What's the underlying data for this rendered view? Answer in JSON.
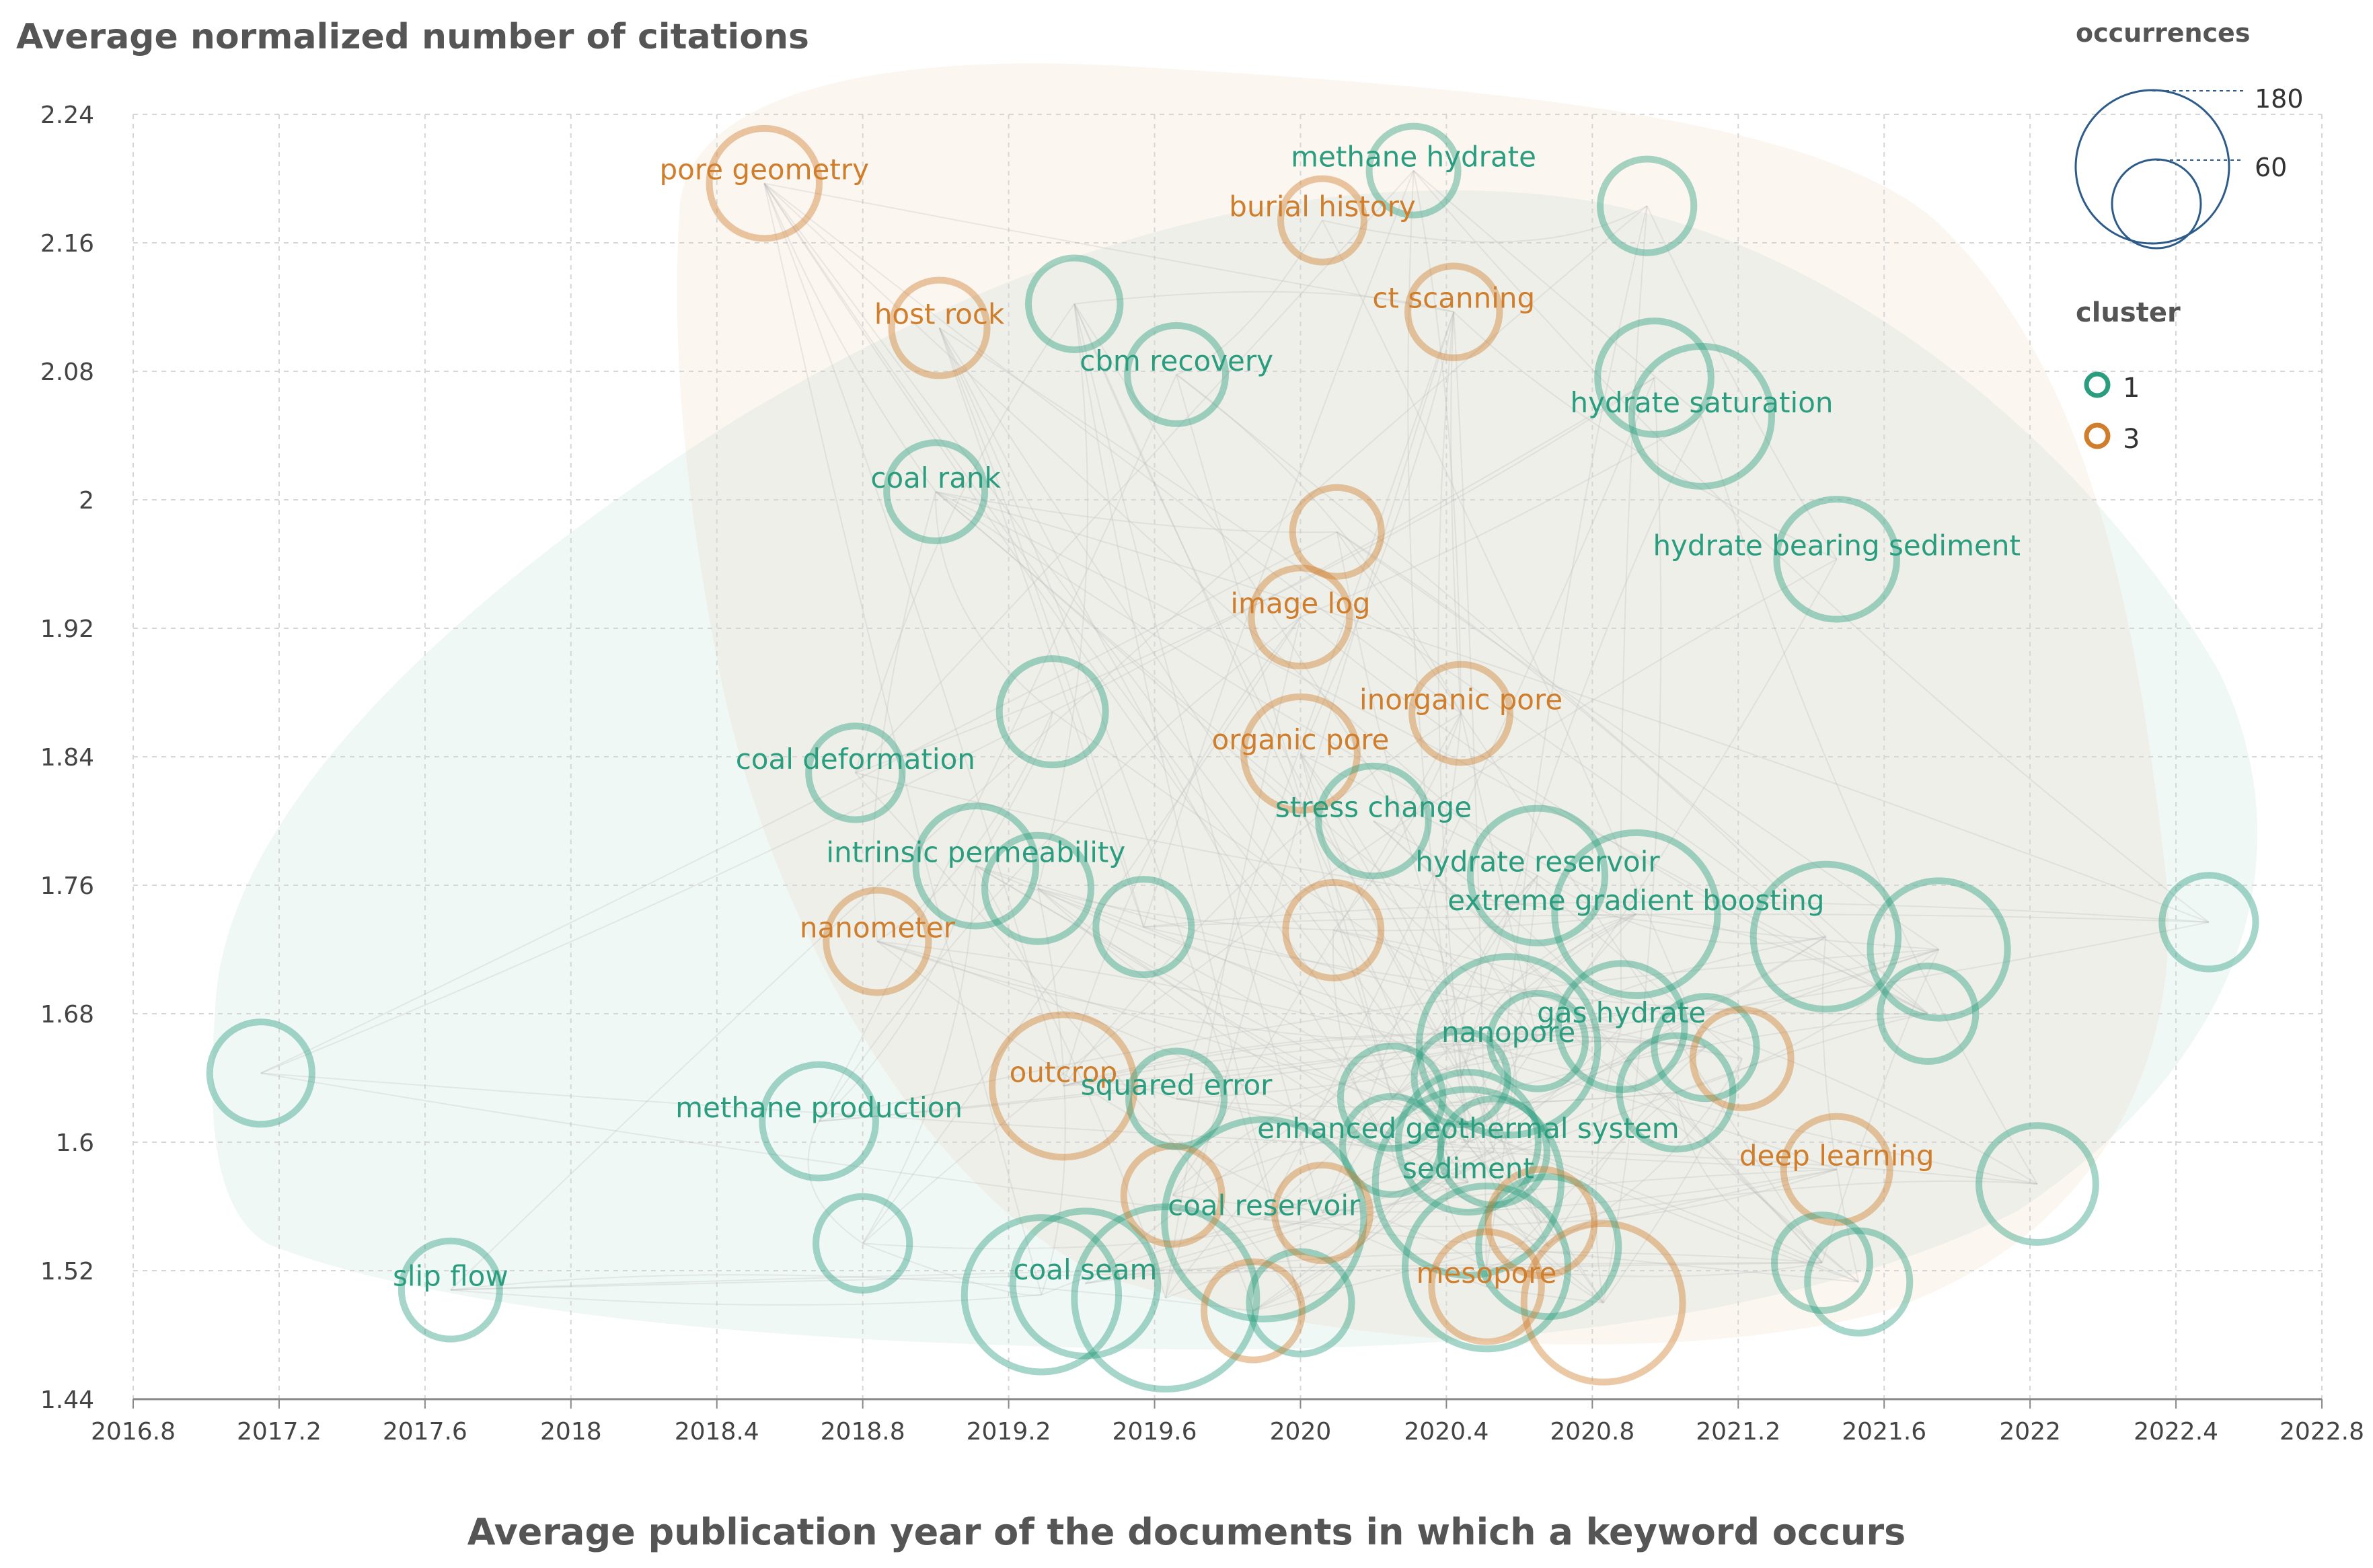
{
  "chart_data": {
    "type": "scatter",
    "title": "",
    "ylabel": "Average normalized number of citations",
    "xlabel": "Average publication year of the documents in which a keyword occurs",
    "xlim": [
      2016.8,
      2022.8
    ],
    "ylim": [
      1.44,
      2.24
    ],
    "x_ticks": [
      "2016.8",
      "2017.2",
      "2017.6",
      "2018",
      "2018.4",
      "2018.8",
      "2019.2",
      "2019.6",
      "2020",
      "2020.4",
      "2020.8",
      "2021.2",
      "2021.6",
      "2022",
      "2022.4",
      "2022.8"
    ],
    "y_ticks": [
      "2.24",
      "2.16",
      "2.08",
      "2",
      "1.92",
      "1.84",
      "1.76",
      "1.68",
      "1.6",
      "1.52",
      "1.44"
    ],
    "grid": true,
    "legend": {
      "size_title": "occurrences",
      "size_values": [
        "180",
        "60"
      ],
      "cluster_title": "cluster",
      "clusters": [
        {
          "name": "1",
          "color": "#2a9d7f"
        },
        {
          "name": "3",
          "color": "#d07d2c"
        }
      ],
      "placement": "top-right"
    },
    "colors": {
      "cluster1": "#2a9d7f",
      "cluster3": "#d07d2c"
    },
    "points": [
      {
        "x": 2018.53,
        "y": 2.197,
        "occ": 50,
        "cluster": 3,
        "label": "pore geometry"
      },
      {
        "x": 2020.31,
        "y": 2.205,
        "occ": 25,
        "cluster": 1,
        "label": "methane hydrate"
      },
      {
        "x": 2020.06,
        "y": 2.174,
        "occ": 20,
        "cluster": 3,
        "label": "burial history"
      },
      {
        "x": 2020.95,
        "y": 2.183,
        "occ": 30,
        "cluster": 1,
        "label": ""
      },
      {
        "x": 2019.38,
        "y": 2.122,
        "occ": 28,
        "cluster": 1,
        "label": ""
      },
      {
        "x": 2020.42,
        "y": 2.117,
        "occ": 28,
        "cluster": 3,
        "label": "ct scanning"
      },
      {
        "x": 2019.01,
        "y": 2.107,
        "occ": 32,
        "cluster": 3,
        "label": "host rock"
      },
      {
        "x": 2019.66,
        "y": 2.078,
        "occ": 35,
        "cluster": 1,
        "label": "cbm recovery"
      },
      {
        "x": 2020.97,
        "y": 2.076,
        "occ": 55,
        "cluster": 1,
        "label": ""
      },
      {
        "x": 2021.1,
        "y": 2.052,
        "occ": 100,
        "cluster": 1,
        "label": "hydrate saturation"
      },
      {
        "x": 2019.0,
        "y": 2.005,
        "occ": 35,
        "cluster": 1,
        "label": "coal rank"
      },
      {
        "x": 2020.1,
        "y": 1.98,
        "occ": 25,
        "cluster": 3,
        "label": ""
      },
      {
        "x": 2021.47,
        "y": 1.963,
        "occ": 65,
        "cluster": 1,
        "label": "hydrate bearing sediment"
      },
      {
        "x": 2020.0,
        "y": 1.927,
        "occ": 35,
        "cluster": 3,
        "label": "image log"
      },
      {
        "x": 2019.32,
        "y": 1.868,
        "occ": 45,
        "cluster": 1,
        "label": ""
      },
      {
        "x": 2020.44,
        "y": 1.867,
        "occ": 35,
        "cluster": 3,
        "label": "inorganic pore"
      },
      {
        "x": 2020.0,
        "y": 1.842,
        "occ": 55,
        "cluster": 3,
        "label": "organic pore"
      },
      {
        "x": 2018.78,
        "y": 1.83,
        "occ": 30,
        "cluster": 1,
        "label": "coal deformation"
      },
      {
        "x": 2020.2,
        "y": 1.8,
        "occ": 50,
        "cluster": 1,
        "label": "stress change"
      },
      {
        "x": 2019.11,
        "y": 1.772,
        "occ": 65,
        "cluster": 1,
        "label": "intrinsic permeability"
      },
      {
        "x": 2019.28,
        "y": 1.758,
        "occ": 45,
        "cluster": 1,
        "label": ""
      },
      {
        "x": 2020.65,
        "y": 1.766,
        "occ": 90,
        "cluster": 1,
        "label": "hydrate reservoir"
      },
      {
        "x": 2020.92,
        "y": 1.742,
        "occ": 150,
        "cluster": 1,
        "label": "extreme gradient boosting"
      },
      {
        "x": 2021.44,
        "y": 1.728,
        "occ": 110,
        "cluster": 1,
        "label": ""
      },
      {
        "x": 2021.75,
        "y": 1.72,
        "occ": 95,
        "cluster": 1,
        "label": ""
      },
      {
        "x": 2022.49,
        "y": 1.737,
        "occ": 30,
        "cluster": 1,
        "label": ""
      },
      {
        "x": 2019.57,
        "y": 1.734,
        "occ": 32,
        "cluster": 1,
        "label": ""
      },
      {
        "x": 2020.09,
        "y": 1.732,
        "occ": 32,
        "cluster": 3,
        "label": ""
      },
      {
        "x": 2018.84,
        "y": 1.725,
        "occ": 40,
        "cluster": 3,
        "label": "nanometer"
      },
      {
        "x": 2021.72,
        "y": 1.68,
        "occ": 32,
        "cluster": 1,
        "label": ""
      },
      {
        "x": 2017.15,
        "y": 1.643,
        "occ": 40,
        "cluster": 1,
        "label": ""
      },
      {
        "x": 2019.35,
        "y": 1.635,
        "occ": 105,
        "cluster": 3,
        "label": "outcrop"
      },
      {
        "x": 2018.68,
        "y": 1.613,
        "occ": 55,
        "cluster": 1,
        "label": "methane production"
      },
      {
        "x": 2020.57,
        "y": 1.66,
        "occ": 190,
        "cluster": 1,
        "label": "nanopore"
      },
      {
        "x": 2020.88,
        "y": 1.672,
        "occ": 75,
        "cluster": 1,
        "label": "gas hydrate"
      },
      {
        "x": 2020.65,
        "y": 1.663,
        "occ": 32,
        "cluster": 1,
        "label": ""
      },
      {
        "x": 2021.11,
        "y": 1.659,
        "occ": 40,
        "cluster": 1,
        "label": ""
      },
      {
        "x": 2021.21,
        "y": 1.652,
        "occ": 35,
        "cluster": 3,
        "label": ""
      },
      {
        "x": 2021.03,
        "y": 1.631,
        "occ": 55,
        "cluster": 1,
        "label": ""
      },
      {
        "x": 2019.66,
        "y": 1.627,
        "occ": 32,
        "cluster": 1,
        "label": "squared error"
      },
      {
        "x": 2020.25,
        "y": 1.628,
        "occ": 40,
        "cluster": 1,
        "label": ""
      },
      {
        "x": 2020.44,
        "y": 1.64,
        "occ": 30,
        "cluster": 1,
        "label": ""
      },
      {
        "x": 2020.46,
        "y": 1.6,
        "occ": 100,
        "cluster": 1,
        "label": "enhanced geothermal system"
      },
      {
        "x": 2020.53,
        "y": 1.594,
        "occ": 45,
        "cluster": 1,
        "label": ""
      },
      {
        "x": 2020.25,
        "y": 1.598,
        "occ": 35,
        "cluster": 1,
        "label": ""
      },
      {
        "x": 2020.46,
        "y": 1.575,
        "occ": 210,
        "cluster": 1,
        "label": "sediment"
      },
      {
        "x": 2021.47,
        "y": 1.583,
        "occ": 45,
        "cluster": 3,
        "label": "deep learning"
      },
      {
        "x": 2022.02,
        "y": 1.574,
        "occ": 60,
        "cluster": 1,
        "label": ""
      },
      {
        "x": 2019.9,
        "y": 1.552,
        "occ": 250,
        "cluster": 1,
        "label": "coal reservoir"
      },
      {
        "x": 2019.65,
        "y": 1.567,
        "occ": 35,
        "cluster": 3,
        "label": ""
      },
      {
        "x": 2020.06,
        "y": 1.556,
        "occ": 32,
        "cluster": 3,
        "label": ""
      },
      {
        "x": 2020.66,
        "y": 1.55,
        "occ": 45,
        "cluster": 3,
        "label": ""
      },
      {
        "x": 2020.68,
        "y": 1.535,
        "occ": 100,
        "cluster": 1,
        "label": ""
      },
      {
        "x": 2018.8,
        "y": 1.537,
        "occ": 30,
        "cluster": 1,
        "label": ""
      },
      {
        "x": 2020.51,
        "y": 1.522,
        "occ": 150,
        "cluster": 1,
        "label": ""
      },
      {
        "x": 2019.41,
        "y": 1.512,
        "occ": 110,
        "cluster": 1,
        "label": "coal seam"
      },
      {
        "x": 2019.29,
        "y": 1.505,
        "occ": 130,
        "cluster": 1,
        "label": ""
      },
      {
        "x": 2019.63,
        "y": 1.503,
        "occ": 200,
        "cluster": 1,
        "label": ""
      },
      {
        "x": 2021.43,
        "y": 1.525,
        "occ": 32,
        "cluster": 1,
        "label": ""
      },
      {
        "x": 2021.53,
        "y": 1.513,
        "occ": 40,
        "cluster": 1,
        "label": ""
      },
      {
        "x": 2020.0,
        "y": 1.5,
        "occ": 40,
        "cluster": 1,
        "label": ""
      },
      {
        "x": 2020.51,
        "y": 1.51,
        "occ": 50,
        "cluster": 3,
        "label": "mesopore"
      },
      {
        "x": 2020.83,
        "y": 1.5,
        "occ": 140,
        "cluster": 3,
        "label": ""
      },
      {
        "x": 2019.87,
        "y": 1.495,
        "occ": 35,
        "cluster": 3,
        "label": ""
      },
      {
        "x": 2017.67,
        "y": 1.508,
        "occ": 35,
        "cluster": 1,
        "label": "slip flow"
      }
    ]
  }
}
